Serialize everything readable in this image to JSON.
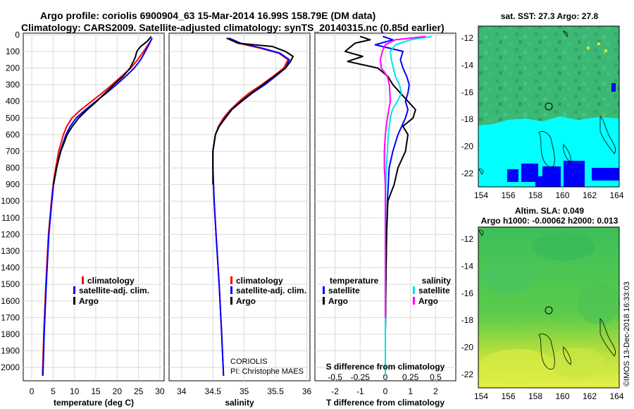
{
  "title": {
    "line1": "Argo profile: coriolis 6900904_63 15-Mar-2014 16.99S 158.79E (DM data)",
    "line2": "Climatology: CARS2009. Satellite-adjusted climatology: synTS_20140315.nc (0.85d earlier)"
  },
  "watermark": "CORIOLIS",
  "pi": "PI: Christophe MAES",
  "timestamp": "©IMOS 13-Dec-2018 16:33:03",
  "colors": {
    "clim": "#ff0000",
    "sat": "#0000ff",
    "argo": "#000000",
    "sat_s": "#00e5e5",
    "argo_s": "#ff00ff"
  },
  "depth_ticks": [
    0,
    100,
    200,
    300,
    400,
    500,
    600,
    700,
    800,
    900,
    1000,
    1100,
    1200,
    1300,
    1400,
    1500,
    1600,
    1700,
    1800,
    1900,
    2000
  ],
  "map_sst": {
    "title": "sat. SST: 27.3 Argo: 27.8",
    "x_ticks": [
      154,
      156,
      158,
      160,
      162,
      164
    ],
    "y_ticks": [
      -12,
      -14,
      -16,
      -18,
      -20,
      -22
    ]
  },
  "map_sla": {
    "title1": "Altim. SLA: 0.049",
    "title2": "Argo h1000: -0.00062 h2000: 0.013",
    "x_ticks": [
      154,
      156,
      158,
      160,
      162,
      164
    ],
    "y_ticks": [
      -12,
      -14,
      -16,
      -18,
      -20,
      -22
    ]
  },
  "chart_data": [
    {
      "type": "line",
      "name": "temperature",
      "xlabel": "temperature (deg C)",
      "ylabel": "depth",
      "xlim": [
        -2,
        31
      ],
      "ylim": [
        2080,
        -10
      ],
      "x_ticks": [
        0,
        5,
        10,
        15,
        20,
        25,
        30
      ],
      "legend": [
        "climatology",
        "satellite-adj. clim.",
        "Argo"
      ],
      "series": [
        {
          "name": "climatology",
          "depth": [
            20,
            50,
            100,
            150,
            200,
            250,
            300,
            350,
            400,
            450,
            500,
            550,
            600,
            700,
            800,
            900,
            1000,
            1200,
            1500,
            1800,
            2050
          ],
          "values": [
            28.2,
            27.5,
            26.2,
            24.8,
            23.2,
            21.0,
            18.8,
            16.5,
            14.0,
            11.5,
            9.4,
            8.2,
            7.4,
            6.3,
            5.6,
            5.0,
            4.6,
            3.9,
            3.3,
            2.8,
            2.5
          ]
        },
        {
          "name": "satellite-adj. clim.",
          "depth": [
            20,
            50,
            100,
            150,
            200,
            250,
            300,
            350,
            400,
            450,
            500,
            550,
            600,
            700,
            800,
            900,
            1000,
            1200,
            1500,
            1800,
            2050
          ],
          "values": [
            28.2,
            27.6,
            26.6,
            25.5,
            24.0,
            22.0,
            19.8,
            17.5,
            15.0,
            12.6,
            10.4,
            9.0,
            8.0,
            6.7,
            5.8,
            5.1,
            4.7,
            4.0,
            3.4,
            2.9,
            2.6
          ]
        },
        {
          "name": "Argo",
          "depth": [
            10,
            40,
            70,
            100,
            130,
            160,
            200,
            250,
            300,
            350,
            400,
            450,
            500,
            550,
            600,
            700,
            800,
            900
          ],
          "values": [
            28.0,
            27.0,
            25.5,
            24.6,
            24.3,
            23.8,
            23.0,
            21.4,
            19.2,
            17.2,
            15.2,
            13.0,
            11.0,
            9.5,
            8.3,
            6.8,
            5.8,
            5.1
          ]
        }
      ]
    },
    {
      "type": "line",
      "name": "salinity",
      "xlabel": "salinity",
      "xlim": [
        33.8,
        36.05
      ],
      "ylim": [
        2080,
        -10
      ],
      "x_ticks": [
        34,
        34.5,
        35,
        35.5,
        36
      ],
      "legend": [
        "climatology",
        "satellite-adj. clim.",
        "Argo"
      ],
      "series": [
        {
          "name": "climatology",
          "depth": [
            20,
            50,
            80,
            110,
            150,
            200,
            250,
            300,
            350,
            400,
            450,
            500,
            550,
            600,
            700,
            800,
            900,
            1000,
            1200,
            1500,
            1800,
            2050
          ],
          "values": [
            34.72,
            34.9,
            35.25,
            35.55,
            35.7,
            35.63,
            35.46,
            35.28,
            35.08,
            34.92,
            34.78,
            34.67,
            34.59,
            34.54,
            34.5,
            34.5,
            34.51,
            34.52,
            34.55,
            34.6,
            34.64,
            34.67
          ]
        },
        {
          "name": "satellite-adj. clim.",
          "depth": [
            20,
            50,
            80,
            110,
            150,
            200,
            250,
            300,
            350,
            400,
            450,
            500,
            550,
            600,
            700,
            800,
            900,
            1000,
            1200,
            1500,
            1800,
            2050
          ],
          "values": [
            34.76,
            34.94,
            35.28,
            35.57,
            35.72,
            35.66,
            35.5,
            35.33,
            35.13,
            34.96,
            34.8,
            34.69,
            34.6,
            34.54,
            34.5,
            34.5,
            34.51,
            34.52,
            34.55,
            34.6,
            34.64,
            34.67
          ]
        },
        {
          "name": "Argo",
          "depth": [
            20,
            50,
            70,
            100,
            130,
            160,
            200,
            250,
            300,
            350,
            400,
            450,
            500,
            550,
            600,
            700,
            800,
            900
          ],
          "values": [
            34.72,
            34.9,
            35.45,
            35.66,
            35.78,
            35.74,
            35.66,
            35.48,
            35.3,
            35.12,
            34.95,
            34.8,
            34.7,
            34.6,
            34.54,
            34.5,
            34.5,
            34.5
          ]
        }
      ]
    },
    {
      "type": "line",
      "name": "differences",
      "xlabel": "T difference from climatology",
      "top_xlabel": "S difference from climatology",
      "xlim": [
        -2.8,
        2.8
      ],
      "ylim": [
        2080,
        -10
      ],
      "x_ticks": [
        -2,
        -1,
        0,
        1,
        2
      ],
      "top_x_ticks": [
        "-0.5",
        "-0.25",
        "0",
        "0.25",
        "0.5"
      ],
      "legend_left_title": "temperature",
      "legend_right_title": "salinity",
      "legend": [
        "satellite",
        "Argo",
        "satellite",
        "Argo"
      ],
      "series": [
        {
          "name": "T satellite",
          "depth": [
            10,
            30,
            60,
            100,
            150,
            200,
            250,
            300,
            350,
            400,
            450,
            500,
            600,
            700,
            800,
            1000,
            1200,
            1500,
            1800,
            2050
          ],
          "values": [
            -0.1,
            0.3,
            -0.4,
            0.7,
            0.6,
            0.7,
            0.85,
            0.95,
            0.9,
            0.8,
            0.9,
            0.8,
            0.5,
            0.3,
            0.15,
            0.08,
            0.05,
            0.02,
            0.0,
            0.0
          ]
        },
        {
          "name": "T Argo",
          "depth": [
            10,
            30,
            50,
            100,
            130,
            160,
            200,
            250,
            300,
            350,
            400,
            450,
            500,
            550,
            600,
            700,
            800,
            900,
            1000,
            1200,
            1500,
            1800,
            2050
          ],
          "values": [
            -1.0,
            -0.6,
            -1.2,
            -1.6,
            -0.9,
            -1.5,
            -0.3,
            0.1,
            0.3,
            0.6,
            0.9,
            1.2,
            1.1,
            0.7,
            0.9,
            0.8,
            0.5,
            0.35,
            0.1,
            0.05,
            0.02,
            0.0,
            0.0
          ]
        },
        {
          "name": "S satellite",
          "depth": [
            10,
            30,
            60,
            100,
            150,
            200,
            250,
            300,
            350,
            400,
            450,
            500,
            600,
            700,
            800,
            1000,
            1200,
            1500,
            1800,
            2050
          ],
          "values": [
            0.46,
            0.25,
            0.1,
            0.05,
            0.06,
            0.08,
            0.1,
            0.14,
            0.16,
            0.12,
            0.07,
            0.05,
            0.03,
            0.02,
            0.01,
            0.0,
            0.0,
            0.0,
            0.0,
            0.0
          ]
        },
        {
          "name": "S Argo",
          "depth": [
            10,
            30,
            60,
            100,
            150,
            200,
            250,
            300,
            400,
            500,
            600,
            700,
            800,
            900,
            1000,
            1200,
            1500,
            1700
          ],
          "values": [
            0.4,
            0.1,
            0.0,
            -0.03,
            -0.05,
            -0.04,
            0.02,
            0.04,
            0.05,
            0.02,
            0.0,
            -0.01,
            -0.01,
            0.0,
            0.0,
            0.0,
            0.0,
            0.0
          ]
        }
      ]
    }
  ]
}
